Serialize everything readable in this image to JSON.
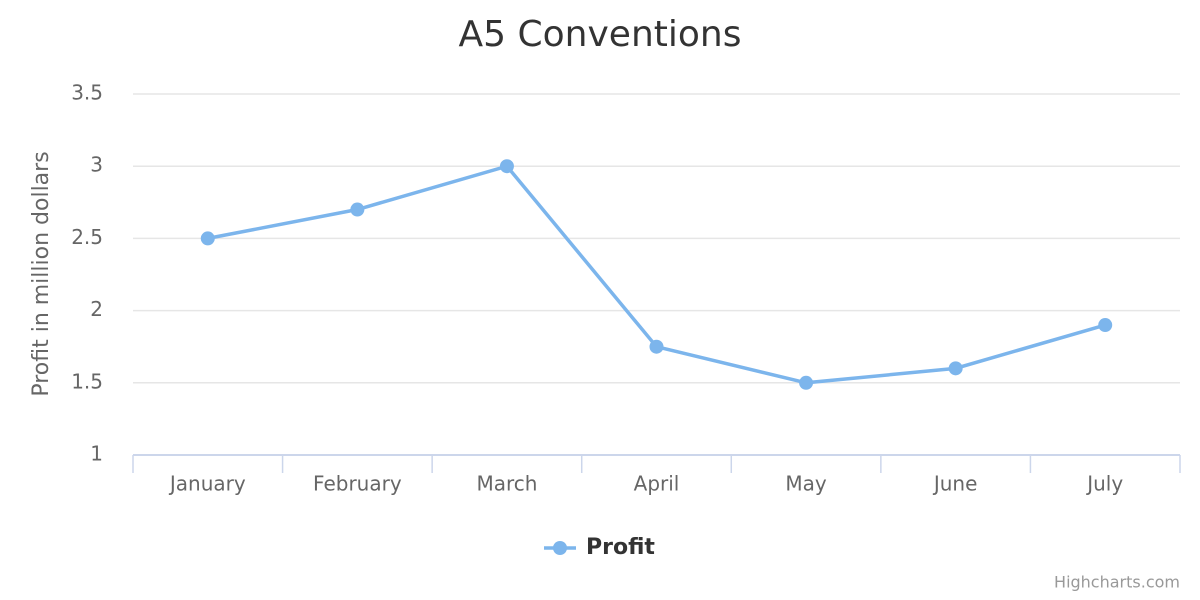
{
  "chart_data": {
    "type": "line",
    "title": "A5 Conventions",
    "y_label": "Profit in million dollars",
    "categories": [
      "January",
      "February",
      "March",
      "April",
      "May",
      "June",
      "July"
    ],
    "series": [
      {
        "name": "Profit",
        "color": "#7cb5ec",
        "values": [
          2.5,
          2.7,
          3.0,
          1.75,
          1.5,
          1.6,
          1.9
        ]
      }
    ],
    "ylim": [
      1,
      3.5
    ],
    "yticks": [
      1,
      1.5,
      2,
      2.5,
      3,
      3.5
    ],
    "grid": true,
    "legend": "bottom",
    "credits": "Highcharts.com"
  }
}
